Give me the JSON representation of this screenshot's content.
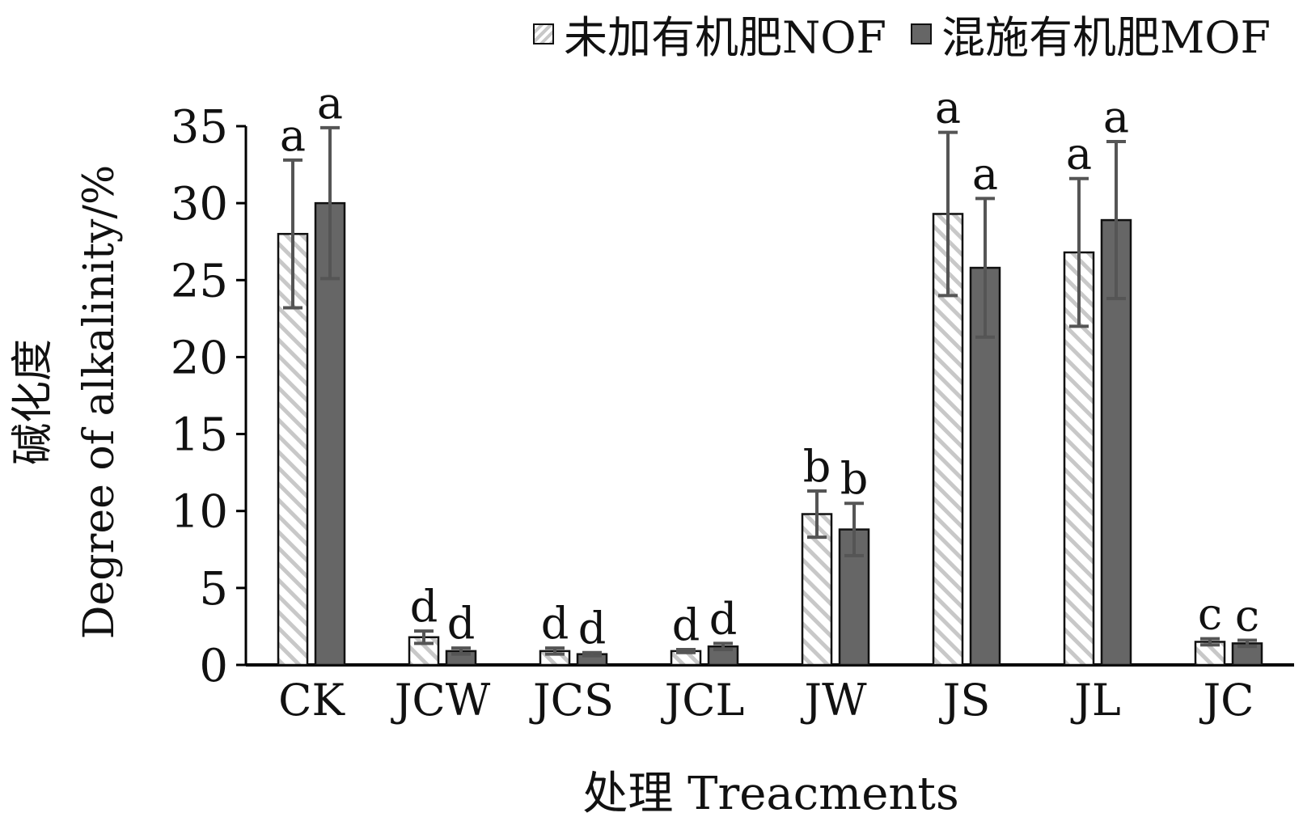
{
  "chart_data": {
    "type": "bar",
    "title": "",
    "xlabel": "处理 Treacments",
    "ylabel_cn": "碱化度",
    "ylabel_en": "Degree of alkalinity/%",
    "ylim": [
      0,
      35
    ],
    "yticks": [
      0,
      5,
      10,
      15,
      20,
      25,
      30,
      35
    ],
    "grid": false,
    "legend_position": "top-right",
    "categories": [
      "CK",
      "JCW",
      "JCS",
      "JCL",
      "JW",
      "JS",
      "JL",
      "JC"
    ],
    "series": [
      {
        "name": "未加有机肥NOF",
        "color": "#ffffff",
        "pattern": "diagonal-hatch",
        "values": [
          28.0,
          1.8,
          0.9,
          0.9,
          9.8,
          29.3,
          26.8,
          1.5
        ],
        "errors": [
          4.8,
          0.4,
          0.2,
          0.1,
          1.5,
          5.3,
          4.8,
          0.2
        ],
        "letters": [
          "a",
          "d",
          "d",
          "d",
          "b",
          "a",
          "a",
          "c"
        ]
      },
      {
        "name": "混施有机肥MOF",
        "color": "#666666",
        "pattern": "solid",
        "values": [
          30.0,
          0.9,
          0.7,
          1.2,
          8.8,
          25.8,
          28.9,
          1.4
        ],
        "errors": [
          4.9,
          0.2,
          0.1,
          0.2,
          1.7,
          4.5,
          5.1,
          0.2
        ],
        "letters": [
          "a",
          "d",
          "d",
          "d",
          "b",
          "a",
          "a",
          "c"
        ]
      }
    ]
  }
}
